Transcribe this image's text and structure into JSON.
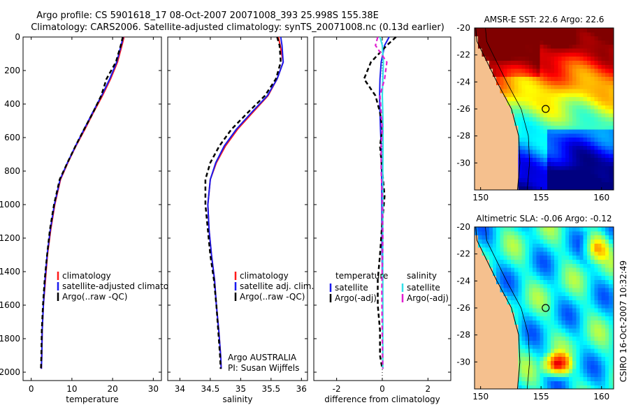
{
  "title": {
    "line1": "Argo profile: CS 5901618_17 08-Oct-2007 20071008_393 25.998S 155.38E",
    "line2": "Climatology: CARS2006. Satellite-adjusted climatology: synTS_20071008.nc (0.13d earlier)"
  },
  "side_label": "CSIRO 16-Oct-2007 10:32:49",
  "colors": {
    "climatology": "#ff1a1a",
    "satellite": "#1a1aee",
    "argo": "#000000",
    "sat_salinity": "#33e0e8",
    "argo_salinity": "#e020d0",
    "land": "#f5c08e"
  },
  "chart_data": [
    {
      "type": "line",
      "xlabel": "temperature",
      "ylabel": "",
      "xlim": [
        -2,
        32
      ],
      "ylim": [
        2050,
        0
      ],
      "xticks": [
        "0",
        "10",
        "20",
        "30"
      ],
      "yticks": [
        "0",
        "200",
        "400",
        "600",
        "800",
        "1000",
        "1200",
        "1400",
        "1600",
        "1800",
        "2000"
      ],
      "legend": [
        "climatology",
        "satellite-adjusted climatology",
        "Argo(..raw -QC)"
      ],
      "series": [
        {
          "name": "climatology",
          "x": [
            22.8,
            22.3,
            21.2,
            19.5,
            17.5,
            15.3,
            13.2,
            11.0,
            9.0,
            7.2,
            5.8,
            4.8,
            4.0,
            3.5,
            3.0,
            2.7,
            2.6,
            2.5
          ],
          "y": [
            0,
            50,
            150,
            250,
            350,
            450,
            550,
            650,
            750,
            850,
            1000,
            1150,
            1300,
            1450,
            1600,
            1750,
            1900,
            1980
          ]
        },
        {
          "name": "satellite-adjusted climatology",
          "x": [
            22.6,
            22.1,
            21.0,
            19.3,
            17.3,
            15.1,
            13.0,
            10.9,
            8.9,
            7.1,
            5.7,
            4.7,
            3.9,
            3.4,
            3.0,
            2.7,
            2.6,
            2.5
          ],
          "y": [
            0,
            50,
            150,
            250,
            350,
            450,
            550,
            650,
            750,
            850,
            1000,
            1150,
            1300,
            1450,
            1600,
            1750,
            1900,
            1980
          ]
        },
        {
          "name": "Argo(..raw -QC)",
          "x": [
            22.5,
            22.0,
            20.8,
            18.5,
            17.2,
            15.2,
            13.0,
            10.9,
            8.9,
            7.0,
            5.6,
            4.6,
            3.9,
            3.3,
            2.9,
            2.6,
            2.5,
            2.4
          ],
          "y": [
            0,
            50,
            150,
            250,
            350,
            450,
            550,
            650,
            750,
            850,
            1000,
            1150,
            1300,
            1450,
            1600,
            1750,
            1900,
            1980
          ]
        }
      ]
    },
    {
      "type": "line",
      "xlabel": "salinity",
      "ylabel": "",
      "xlim": [
        33.8,
        36.1
      ],
      "ylim": [
        2050,
        0
      ],
      "xticks": [
        "34",
        "34.5",
        "35",
        "35.5",
        "36"
      ],
      "legend": [
        "climatology",
        "satellite adj. clim.",
        "Argo(..raw -QC)"
      ],
      "annotation": [
        "Argo AUSTRALIA",
        "PI: Susan Wijffels"
      ],
      "series": [
        {
          "name": "climatology",
          "x": [
            35.62,
            35.65,
            35.7,
            35.6,
            35.45,
            35.2,
            34.95,
            34.75,
            34.6,
            34.5,
            34.46,
            34.48,
            34.52,
            34.57,
            34.6,
            34.64,
            34.67,
            34.68
          ],
          "y": [
            0,
            50,
            150,
            250,
            350,
            450,
            550,
            650,
            750,
            850,
            1000,
            1150,
            1300,
            1450,
            1600,
            1750,
            1900,
            1980
          ]
        },
        {
          "name": "satellite adj. clim.",
          "x": [
            35.66,
            35.68,
            35.7,
            35.6,
            35.44,
            35.18,
            34.93,
            34.73,
            34.59,
            34.5,
            34.46,
            34.48,
            34.52,
            34.57,
            34.6,
            34.64,
            34.67,
            34.68
          ],
          "y": [
            0,
            50,
            150,
            250,
            350,
            450,
            550,
            650,
            750,
            850,
            1000,
            1150,
            1300,
            1450,
            1600,
            1750,
            1900,
            1980
          ]
        },
        {
          "name": "Argo(..raw -QC)",
          "x": [
            35.6,
            35.64,
            35.66,
            35.58,
            35.4,
            35.12,
            34.85,
            34.65,
            34.5,
            34.42,
            34.42,
            34.46,
            34.5,
            34.56,
            34.6,
            34.63,
            34.66,
            34.67
          ],
          "y": [
            0,
            50,
            150,
            250,
            350,
            450,
            550,
            650,
            750,
            850,
            1000,
            1150,
            1300,
            1450,
            1600,
            1750,
            1900,
            1980
          ]
        }
      ]
    },
    {
      "type": "line",
      "xlabel": "difference from climatology",
      "ylabel": "",
      "xlim": [
        -3,
        3
      ],
      "ylim": [
        2050,
        0
      ],
      "xticks": [
        "-2",
        "0",
        "2"
      ],
      "legend": [
        "temperature",
        "satellite",
        "Argo(-adj)",
        "salinity",
        "satellite",
        "Argo(-adj)"
      ],
      "series": [
        {
          "name": "temperature satellite",
          "x": [
            0.3,
            0.1,
            -0.05,
            -0.1,
            -0.12,
            -0.1,
            -0.08,
            -0.05,
            -0.03,
            -0.02,
            -0.01,
            0.0
          ],
          "y": [
            0,
            50,
            150,
            250,
            350,
            450,
            550,
            650,
            800,
            1000,
            1300,
            1400
          ]
        },
        {
          "name": "temperature Argo(-adj)",
          "x": [
            0.6,
            0.2,
            -0.5,
            -0.8,
            -0.3,
            -0.1,
            0.0,
            -0.1,
            0.0,
            0.1,
            0.0,
            -0.1,
            -0.2,
            -0.2,
            -0.1,
            -0.1,
            0.0
          ],
          "y": [
            0,
            50,
            150,
            250,
            350,
            450,
            550,
            650,
            800,
            950,
            1100,
            1300,
            1450,
            1600,
            1750,
            1900,
            1980
          ]
        },
        {
          "name": "salinity satellite",
          "x": [
            -0.1,
            0.0,
            0.05,
            0.02,
            0.0,
            0.02,
            0.03,
            0.03,
            0.02,
            0.02,
            0.02,
            0.02
          ],
          "y": [
            0,
            50,
            150,
            250,
            350,
            450,
            550,
            650,
            800,
            1000,
            1500,
            1980
          ]
        },
        {
          "name": "salinity Argo(-adj)",
          "x": [
            -0.2,
            -0.3,
            0.2,
            0.1,
            -0.1,
            -0.05,
            0.0,
            -0.05,
            -0.05,
            0.0,
            0.02,
            -0.02,
            0.0,
            0.02
          ],
          "y": [
            0,
            50,
            150,
            250,
            350,
            450,
            550,
            650,
            800,
            950,
            1200,
            1500,
            1800,
            1980
          ]
        }
      ]
    },
    {
      "type": "heatmap",
      "title": "AMSR-E SST: 22.6 Argo: 22.6",
      "xlim": [
        149.5,
        161
      ],
      "ylim": [
        -32,
        -20
      ],
      "xticks": [
        "150",
        "155",
        "160"
      ],
      "yticks": [
        "-20",
        "-22",
        "-24",
        "-26",
        "-28",
        "-30"
      ],
      "marker": {
        "lon": 155.38,
        "lat": -26.0
      }
    },
    {
      "type": "heatmap",
      "title": "Altimetric SLA: -0.06 Argo: -0.12",
      "xlim": [
        149.5,
        161
      ],
      "ylim": [
        -32,
        -20
      ],
      "xticks": [
        "150",
        "155",
        "160"
      ],
      "yticks": [
        "-20",
        "-22",
        "-24",
        "-26",
        "-28",
        "-30"
      ],
      "marker": {
        "lon": 155.38,
        "lat": -26.0
      }
    }
  ]
}
